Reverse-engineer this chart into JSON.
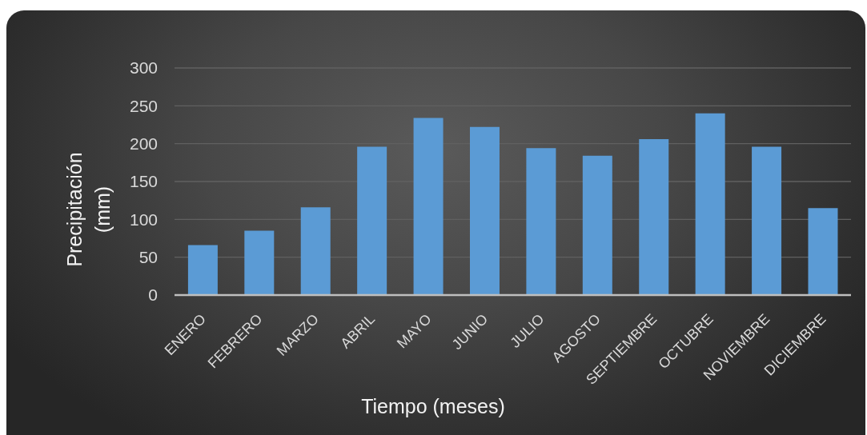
{
  "chart_data": {
    "type": "bar",
    "xlabel": "Tiempo (meses)",
    "ylabel": "Precipitación (mm)",
    "categories": [
      "ENERO",
      "FEBRERO",
      "MARZO",
      "ABRIL",
      "MAYO",
      "JUNIO",
      "JULIO",
      "AGOSTO",
      "SEPTIEMBRE",
      "OCTUBRE",
      "NOVIEMBRE",
      "DICIEMBRE"
    ],
    "values": [
      66,
      85,
      116,
      196,
      234,
      222,
      194,
      184,
      206,
      240,
      196,
      115
    ],
    "color": "#5b9bd5",
    "ylim": [
      0,
      300
    ],
    "yticks": [
      0,
      50,
      100,
      150,
      200,
      250,
      300
    ],
    "grid": "y"
  }
}
